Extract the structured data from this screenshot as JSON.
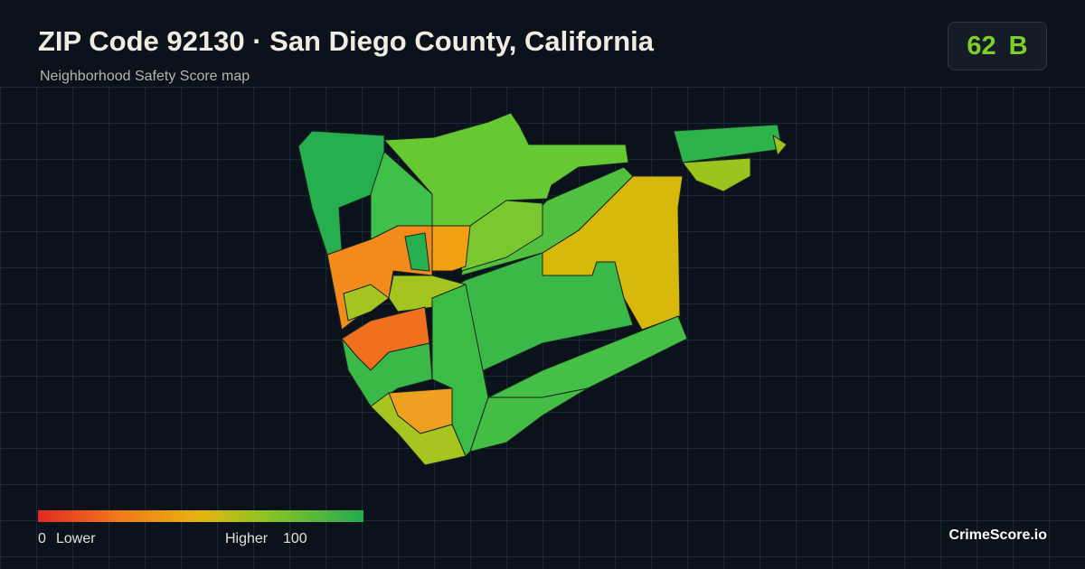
{
  "header": {
    "title": "ZIP Code 92130 · San Diego County, California",
    "subtitle": "Neighborhood Safety Score map"
  },
  "score": {
    "value": 62,
    "grade": "B"
  },
  "legend": {
    "min": 0,
    "min_label": "Lower",
    "max_label": "Higher",
    "max": 100
  },
  "footer": {
    "brand": "CrimeScore.io"
  }
}
